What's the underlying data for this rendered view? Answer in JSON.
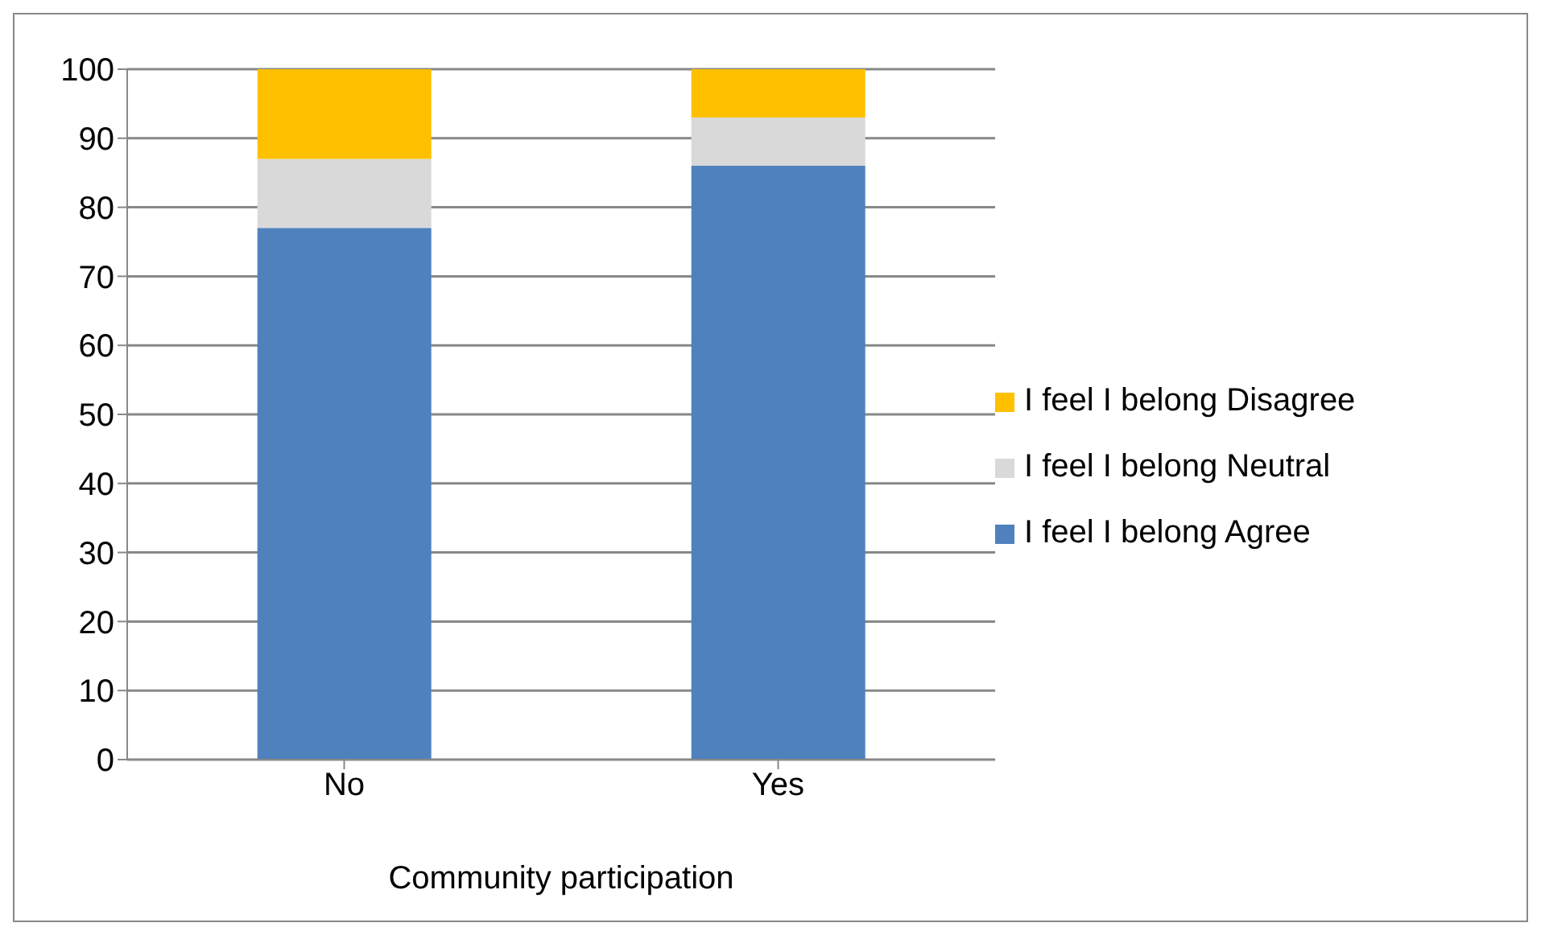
{
  "chart_data": {
    "type": "bar",
    "stacked": true,
    "xlabel": "Community participation",
    "categories": [
      "No",
      "Yes"
    ],
    "series": [
      {
        "name": "I feel I belong Agree",
        "color": "#4f81bd",
        "values": [
          77,
          86
        ]
      },
      {
        "name": "I feel I belong Neutral",
        "color": "#d9d9d9",
        "values": [
          10,
          7
        ]
      },
      {
        "name": "I feel I belong Disagree",
        "color": "#ffc000",
        "values": [
          13,
          7
        ]
      }
    ],
    "ylim": [
      0,
      100
    ],
    "yticks": [
      0,
      10,
      20,
      30,
      40,
      50,
      60,
      70,
      80,
      90,
      100
    ],
    "grid": "y",
    "legend": "right"
  }
}
